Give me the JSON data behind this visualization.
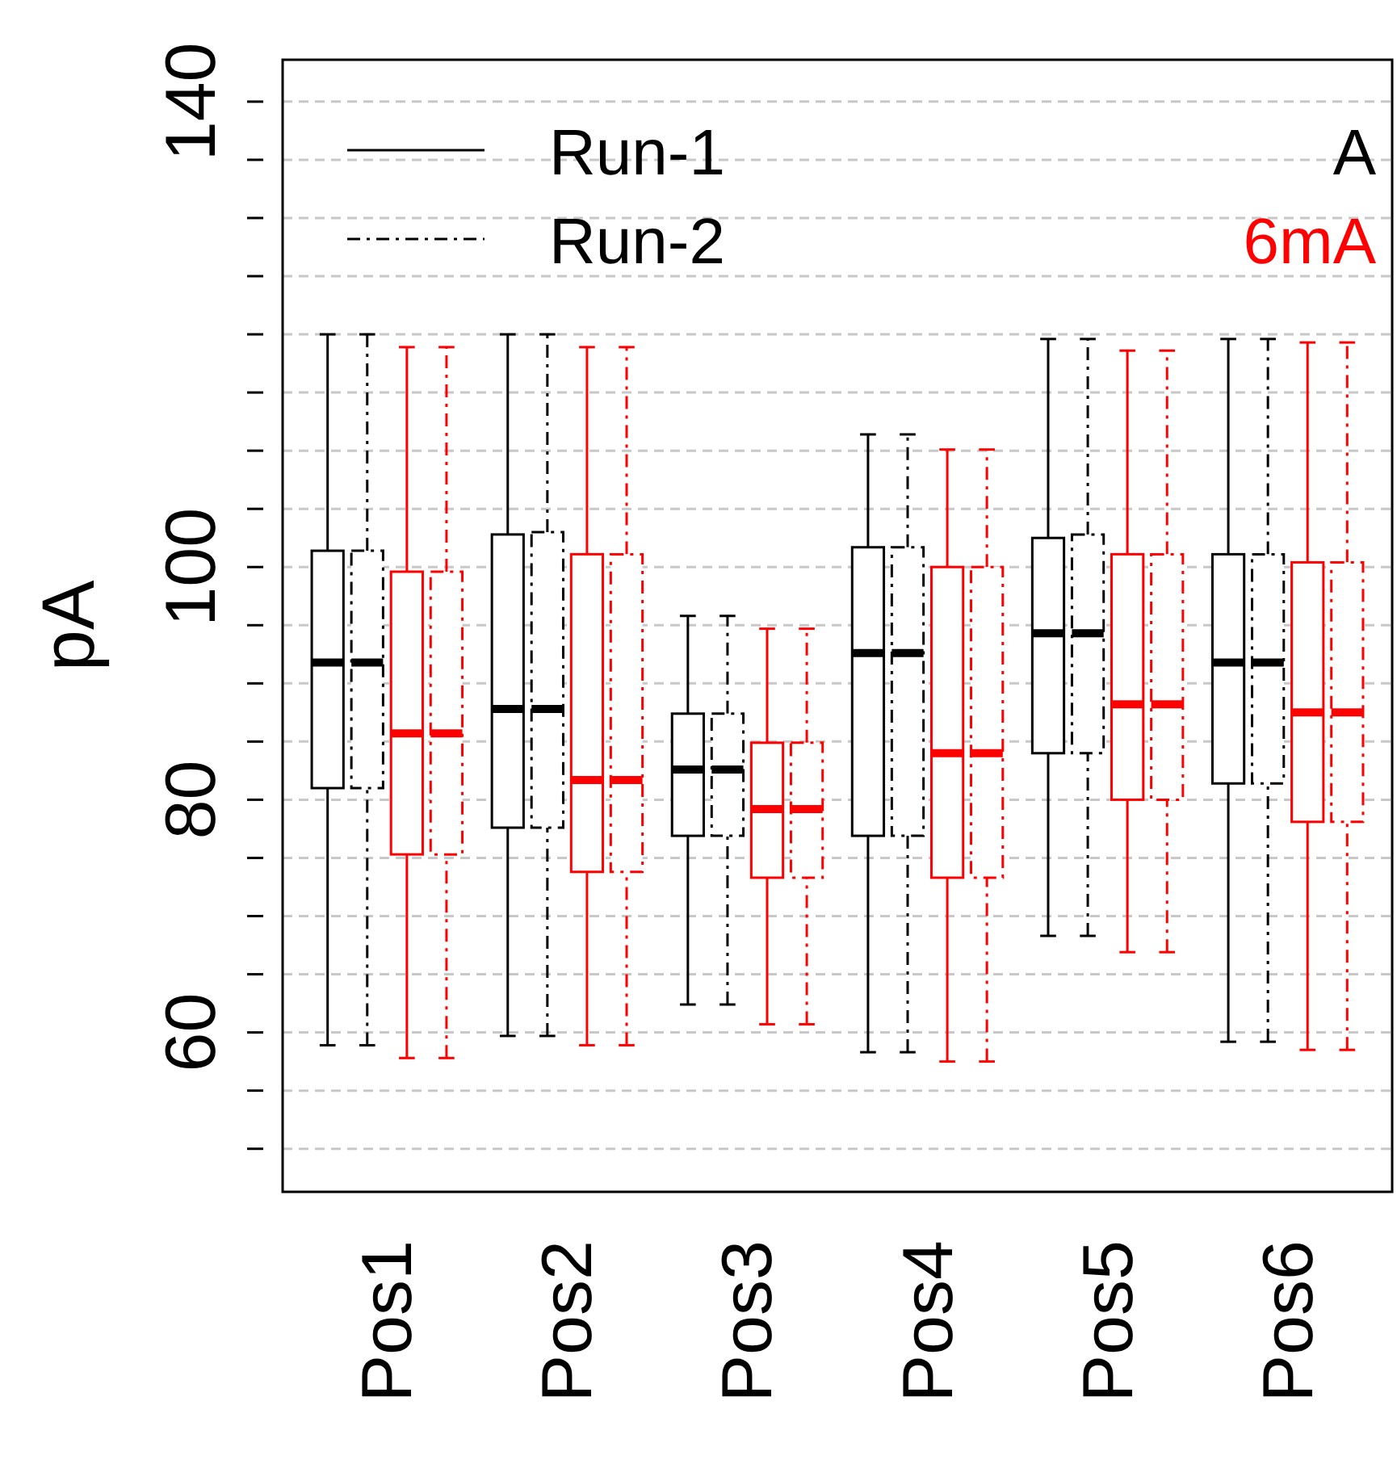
{
  "chart_data": {
    "type": "box",
    "categories": [
      "Pos1",
      "Pos2",
      "Pos3",
      "Pos4",
      "Pos5",
      "Pos6"
    ],
    "ylabel": "pA",
    "ylim": [
      46.3,
      143.6
    ],
    "yticks": [
      {
        "value": 50,
        "label": null
      },
      {
        "value": 55,
        "label": null
      },
      60,
      {
        "value": 65,
        "label": null
      },
      {
        "value": 70,
        "label": null
      },
      {
        "value": 75,
        "label": null
      },
      80,
      {
        "value": 85,
        "label": null
      },
      {
        "value": 90,
        "label": null
      },
      {
        "value": 95,
        "label": null
      },
      100,
      {
        "value": 105,
        "label": null
      },
      {
        "value": 110,
        "label": null
      },
      {
        "value": 115,
        "label": null
      },
      {
        "value": 120,
        "label": null
      },
      {
        "value": 125,
        "label": null
      },
      {
        "value": 130,
        "label": null
      },
      {
        "value": 135,
        "label": null
      },
      140
    ],
    "grid": "y",
    "legend": "top",
    "annotations": [
      "A",
      "6mA"
    ],
    "series": [
      {
        "name": "Run-1",
        "color": "#000000",
        "line_style": "solid",
        "boxes": [
          {
            "low": 58.9,
            "q1": 81,
            "median": 91.8,
            "q3": 101.4,
            "high": 120
          },
          {
            "low": 59.7,
            "q1": 77.6,
            "median": 87.8,
            "q3": 102.8,
            "high": 120
          },
          {
            "low": 62.4,
            "q1": 76.9,
            "median": 82.6,
            "q3": 87.4,
            "high": 95.8
          },
          {
            "low": 58.3,
            "q1": 76.9,
            "median": 92.6,
            "q3": 101.7,
            "high": 111.4
          },
          {
            "low": 68.3,
            "q1": 84,
            "median": 94.3,
            "q3": 102.5,
            "high": 119.6
          },
          {
            "low": 59.2,
            "q1": 81.4,
            "median": 91.8,
            "q3": 101.1,
            "high": 119.6
          }
        ]
      },
      {
        "name": "Run-2",
        "color": "#000000",
        "line_style": "dashdot",
        "boxes": [
          {
            "low": 58.9,
            "q1": 81,
            "median": 91.8,
            "q3": 101.4,
            "high": 120
          },
          {
            "low": 59.7,
            "q1": 77.6,
            "median": 87.8,
            "q3": 103,
            "high": 120
          },
          {
            "low": 62.4,
            "q1": 76.9,
            "median": 82.6,
            "q3": 87.4,
            "high": 95.8
          },
          {
            "low": 58.3,
            "q1": 76.9,
            "median": 92.6,
            "q3": 101.7,
            "high": 111.4
          },
          {
            "low": 68.3,
            "q1": 84,
            "median": 94.3,
            "q3": 102.8,
            "high": 119.6
          },
          {
            "low": 59.2,
            "q1": 81.4,
            "median": 91.8,
            "q3": 101.1,
            "high": 119.6
          }
        ]
      },
      {
        "color": "#ff0000",
        "line_style": "solid",
        "boxes": [
          {
            "low": 57.8,
            "q1": 75.3,
            "median": 85.7,
            "q3": 99.6,
            "high": 118.9
          },
          {
            "low": 58.9,
            "q1": 73.8,
            "median": 81.7,
            "q3": 101.1,
            "high": 118.9
          },
          {
            "low": 60.7,
            "q1": 73.3,
            "median": 79.2,
            "q3": 84.9,
            "high": 94.7
          },
          {
            "low": 57.5,
            "q1": 73.3,
            "median": 84,
            "q3": 100,
            "high": 110.1
          },
          {
            "low": 66.9,
            "q1": 80,
            "median": 88.2,
            "q3": 101.1,
            "high": 118.6
          },
          {
            "low": 58.5,
            "q1": 78.1,
            "median": 87.5,
            "q3": 100.4,
            "high": 119.3
          }
        ]
      },
      {
        "color": "#ff0000",
        "line_style": "dashdot",
        "boxes": [
          {
            "low": 57.8,
            "q1": 75.3,
            "median": 85.7,
            "q3": 99.6,
            "high": 118.9
          },
          {
            "low": 58.9,
            "q1": 73.8,
            "median": 81.7,
            "q3": 101.1,
            "high": 118.9
          },
          {
            "low": 60.7,
            "q1": 73.3,
            "median": 79.2,
            "q3": 84.9,
            "high": 94.7
          },
          {
            "low": 57.5,
            "q1": 73.3,
            "median": 84,
            "q3": 100,
            "high": 110.1
          },
          {
            "low": 66.9,
            "q1": 80,
            "median": 88.2,
            "q3": 101.1,
            "high": 118.6
          },
          {
            "low": 58.5,
            "q1": 78.1,
            "median": 87.5,
            "q3": 100.4,
            "high": 119.3
          }
        ]
      }
    ]
  }
}
